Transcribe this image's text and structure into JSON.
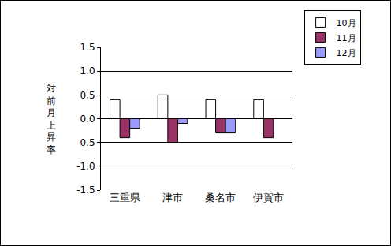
{
  "chart_data": {
    "type": "bar",
    "y_label": "対前月上昇率",
    "categories": [
      "三重県",
      "津市",
      "桑名市",
      "伊賀市"
    ],
    "series": [
      {
        "name": "10月",
        "color": "#ffffff",
        "values": [
          0.4,
          0.5,
          0.4,
          0.4
        ]
      },
      {
        "name": "11月",
        "color": "#993366",
        "values": [
          -0.4,
          -0.5,
          -0.3,
          -0.4
        ]
      },
      {
        "name": "12月",
        "color": "#9999ff",
        "values": [
          -0.2,
          -0.1,
          -0.3,
          0.0
        ]
      }
    ],
    "ylim": [
      -1.5,
      1.5
    ],
    "yticks": [
      {
        "value": -1.5,
        "label": "-1.5"
      },
      {
        "value": -1.0,
        "label": "-1.0"
      },
      {
        "value": -0.5,
        "label": "-0.5"
      },
      {
        "value": 0,
        "label": "0.0"
      },
      {
        "value": 0.5,
        "label": "0.5"
      },
      {
        "value": 1.0,
        "label": "1.0"
      },
      {
        "value": 1.5,
        "label": "1.5"
      }
    ],
    "grid": true,
    "legend": "top right"
  }
}
